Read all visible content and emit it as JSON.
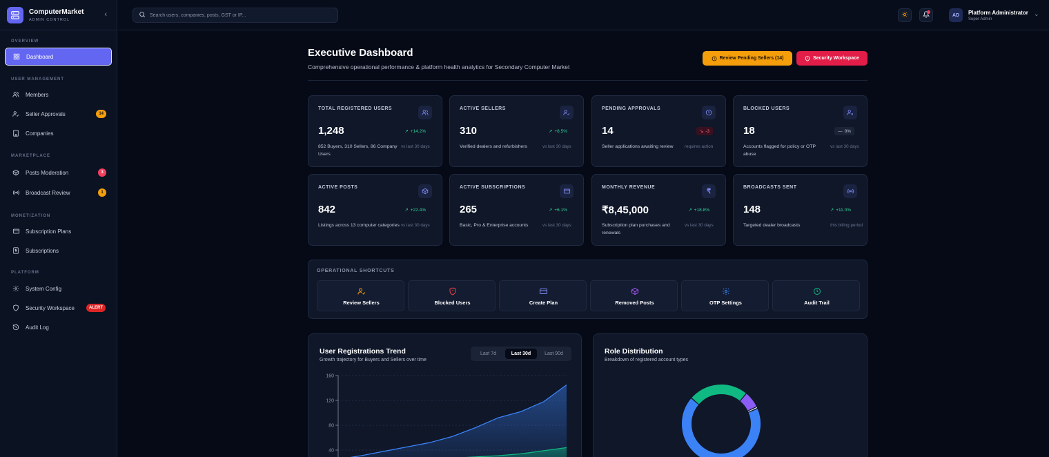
{
  "app": {
    "name": "ComputerMarket",
    "subtitle": "ADMIN CONTROL"
  },
  "sidebar": {
    "sections": [
      {
        "title": "OVERVIEW"
      },
      {
        "title": "USER MANAGEMENT"
      },
      {
        "title": "MARKETPLACE"
      },
      {
        "title": "MONETIZATION"
      },
      {
        "title": "PLATFORM"
      }
    ],
    "items": [
      {
        "label": "Dashboard",
        "icon": "grid-icon"
      },
      {
        "label": "Members",
        "icon": "users-icon"
      },
      {
        "label": "Seller Approvals",
        "icon": "user-check-icon",
        "badge": "14"
      },
      {
        "label": "Companies",
        "icon": "building-icon"
      },
      {
        "label": "Posts Moderation",
        "icon": "box-icon",
        "badge": "3"
      },
      {
        "label": "Broadcast Review",
        "icon": "broadcast-icon",
        "badge": "1"
      },
      {
        "label": "Subscription Plans",
        "icon": "credit-card-icon"
      },
      {
        "label": "Subscriptions",
        "icon": "receipt-icon"
      },
      {
        "label": "System Config",
        "icon": "gear-icon"
      },
      {
        "label": "Security Workspace",
        "icon": "shield-icon",
        "badge": "ALERT"
      },
      {
        "label": "Audit Log",
        "icon": "history-icon"
      }
    ]
  },
  "header": {
    "search_placeholder": "Search users, companies, posts, GST or IP...",
    "user": {
      "initials": "AD",
      "name": "Platform Administrator",
      "role": "Super Admin"
    }
  },
  "page": {
    "title": "Executive Dashboard",
    "subtitle": "Comprehensive operational performance & platform health analytics for Secondary Computer Market",
    "actions": {
      "review": "Review Pending Sellers (14)",
      "security": "Security Workspace"
    }
  },
  "stats": [
    {
      "label": "TOTAL REGISTERED USERS",
      "value": "1,248",
      "trend": "+14.2%",
      "desc": "852 Buyers, 310 Sellers, 86 Company Users",
      "period": "vs last 30 days",
      "icon": "users-icon"
    },
    {
      "label": "ACTIVE SELLERS",
      "value": "310",
      "trend": "+8.5%",
      "desc": "Verified dealers and refurbishers",
      "period": "vs last 30 days",
      "icon": "user-check-icon"
    },
    {
      "label": "PENDING APPROVALS",
      "value": "14",
      "trend": "-3",
      "desc": "Seller applications awaiting review",
      "period": "requires action",
      "icon": "clock-icon"
    },
    {
      "label": "BLOCKED USERS",
      "value": "18",
      "trend": "0%",
      "desc": "Accounts flagged for policy or OTP abuse",
      "period": "vs last 30 days",
      "icon": "user-x-icon"
    },
    {
      "label": "ACTIVE POSTS",
      "value": "842",
      "trend": "+22.4%",
      "desc": "Listings across 13 computer categories",
      "period": "vs last 30 days",
      "icon": "box-icon"
    },
    {
      "label": "ACTIVE SUBSCRIPTIONS",
      "value": "265",
      "trend": "+6.1%",
      "desc": "Basic, Pro & Enterprise accounts",
      "period": "vs last 30 days",
      "icon": "credit-card-icon"
    },
    {
      "label": "MONTHLY REVENUE",
      "value": "₹8,45,000",
      "trend": "+18.8%",
      "desc": "Subscription plan purchases and renewals",
      "period": "vs last 30 days",
      "icon": "rupee-icon"
    },
    {
      "label": "BROADCASTS SENT",
      "value": "148",
      "trend": "+11.0%",
      "desc": "Targeted dealer broadcasts",
      "period": "this billing period",
      "icon": "broadcast-icon"
    }
  ],
  "shortcuts": {
    "title": "OPERATIONAL SHORTCUTS",
    "items": [
      {
        "label": "Review Sellers",
        "icon": "user-check-icon",
        "color": "#f59e0b"
      },
      {
        "label": "Blocked Users",
        "icon": "shield-alert-icon",
        "color": "#ef4444"
      },
      {
        "label": "Create Plan",
        "icon": "credit-card-icon",
        "color": "#818cf8"
      },
      {
        "label": "Removed Posts",
        "icon": "box-icon",
        "color": "#a855f7"
      },
      {
        "label": "OTP Settings",
        "icon": "gear-icon",
        "color": "#3b82f6"
      },
      {
        "label": "Audit Trail",
        "icon": "clock-icon",
        "color": "#10b981"
      }
    ]
  },
  "registrations": {
    "title": "User Registrations Trend",
    "subtitle": "Growth trajectory for Buyers and Sellers over time",
    "ranges": [
      "Last 7d",
      "Last 30d",
      "Last 90d"
    ],
    "selected_range": "Last 30d"
  },
  "roles": {
    "title": "Role Distribution",
    "subtitle": "Breakdown of registered account types"
  },
  "chart_data": [
    {
      "type": "area",
      "title": "User Registrations Trend",
      "ylim": [
        0,
        160
      ],
      "yticks": [
        "160",
        "120",
        "80",
        "40"
      ],
      "x": [
        0,
        1,
        2,
        3,
        4,
        5,
        6,
        7,
        8,
        9,
        10
      ],
      "series": [
        {
          "values": [
            25,
            31,
            38,
            45,
            52,
            62,
            76,
            92,
            102,
            118,
            145
          ],
          "color": "#3b82f6"
        },
        {
          "values": [
            14,
            16,
            19,
            22,
            25,
            27,
            29,
            31,
            34,
            39,
            44
          ],
          "color": "#10b981"
        }
      ]
    },
    {
      "type": "pie",
      "title": "Role Distribution",
      "slices": [
        {
          "value": 852,
          "color": "#3b82f6"
        },
        {
          "value": 310,
          "color": "#10b981"
        },
        {
          "value": 86,
          "color": "#8b5cf6"
        },
        {
          "value": 10,
          "color": "#e5e7eb"
        }
      ]
    }
  ]
}
